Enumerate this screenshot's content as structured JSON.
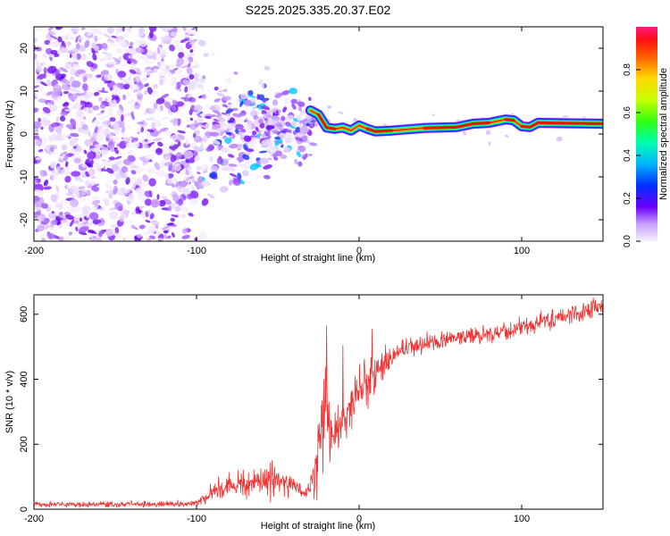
{
  "title": "S225.2025.335.20.37.E02",
  "chart_data": [
    {
      "type": "heatmap",
      "xlabel": "Height of straight line (km)",
      "ylabel": "Frequency (Hz)",
      "xlim": [
        -200,
        150
      ],
      "ylim": [
        -25,
        25
      ],
      "xticks": [
        -200,
        -100,
        0,
        100
      ],
      "yticks": [
        -20,
        -10,
        0,
        10,
        20
      ],
      "tone_track": [
        [
          -30,
          5.5
        ],
        [
          -25,
          4.5
        ],
        [
          -20,
          1.5
        ],
        [
          -15,
          1.2
        ],
        [
          -10,
          1.5
        ],
        [
          -5,
          0.8
        ],
        [
          0,
          2.0
        ],
        [
          5,
          1.2
        ],
        [
          10,
          0.6
        ],
        [
          20,
          0.8
        ],
        [
          40,
          1.4
        ],
        [
          60,
          1.6
        ],
        [
          70,
          2.4
        ],
        [
          80,
          2.6
        ],
        [
          90,
          3.4
        ],
        [
          95,
          3.2
        ],
        [
          100,
          1.8
        ],
        [
          105,
          1.6
        ],
        [
          110,
          2.6
        ],
        [
          150,
          2.4
        ]
      ],
      "noise_region": {
        "x": [
          -200,
          -100
        ],
        "y": [
          -25,
          25
        ]
      },
      "transition_region": {
        "x": [
          -100,
          -30
        ],
        "y": [
          -8,
          8
        ]
      },
      "colorbar": {
        "label": "Normalized spectral amplitude",
        "ticks": [
          "0.0",
          "0.2",
          "0.4",
          "0.6",
          "0.8"
        ],
        "range": [
          0,
          1
        ]
      }
    },
    {
      "type": "line",
      "xlabel": "Height of straight line (km)",
      "ylabel": "SNR (10 * v/v)",
      "xlim": [
        -200,
        150
      ],
      "ylim": [
        0,
        660
      ],
      "xticks": [
        -200,
        -100,
        0,
        100
      ],
      "yticks": [
        0,
        200,
        400,
        600
      ],
      "color": "#ee3333",
      "series": [
        {
          "name": "SNR",
          "x": [
            -200,
            -150,
            -110,
            -100,
            -90,
            -80,
            -70,
            -60,
            -50,
            -40,
            -32,
            -27,
            -22,
            -20,
            -18,
            -15,
            -10,
            -5,
            0,
            5,
            10,
            15,
            20,
            30,
            40,
            60,
            80,
            100,
            120,
            150
          ],
          "mean": [
            15,
            15,
            16,
            18,
            50,
            75,
            80,
            90,
            90,
            70,
            40,
            120,
            300,
            380,
            220,
            240,
            270,
            320,
            370,
            390,
            420,
            440,
            470,
            500,
            510,
            530,
            540,
            560,
            585,
            630
          ],
          "jitter": [
            8,
            8,
            9,
            10,
            25,
            35,
            35,
            45,
            40,
            30,
            20,
            90,
            150,
            150,
            80,
            60,
            60,
            70,
            70,
            80,
            60,
            40,
            30,
            25,
            25,
            25,
            25,
            25,
            30,
            25
          ],
          "peaks": [
            [
              -20,
              565
            ],
            [
              -10,
              505
            ],
            [
              8,
              555
            ]
          ]
        }
      ]
    }
  ]
}
